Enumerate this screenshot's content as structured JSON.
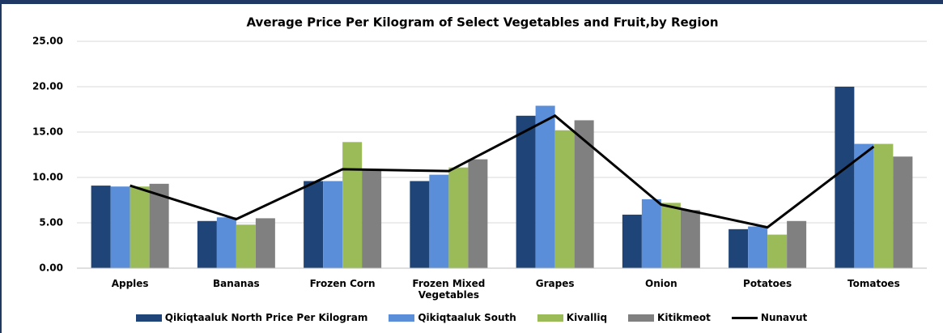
{
  "chart_data": {
    "type": "bar",
    "title": "Average Price Per Kilogram of Select Vegetables and Fruit,by Region",
    "categories": [
      "Apples",
      "Bananas",
      "Frozen Corn",
      "Frozen Mixed Vegetables",
      "Grapes",
      "Onion",
      "Potatoes",
      "Tomatoes"
    ],
    "series": [
      {
        "name": "Qikiqtaaluk North Price Per Kilogram",
        "color": "#1f4478",
        "values": [
          9.1,
          5.2,
          9.6,
          9.6,
          16.8,
          5.9,
          4.3,
          20.0
        ]
      },
      {
        "name": "Qikiqtaaluk South",
        "color": "#5b8ed8",
        "values": [
          9.0,
          5.6,
          9.6,
          10.3,
          17.9,
          7.6,
          4.6,
          13.7
        ]
      },
      {
        "name": "Kivalliq",
        "color": "#9bbb59",
        "values": [
          9.0,
          4.8,
          13.9,
          11.1,
          15.2,
          7.2,
          3.7,
          13.7
        ]
      },
      {
        "name": "Kitikmeot",
        "color": "#808080",
        "values": [
          9.3,
          5.5,
          10.9,
          12.0,
          16.3,
          6.4,
          5.2,
          12.3
        ]
      },
      {
        "name": "Nunavut",
        "color": "#000000",
        "type": "line",
        "values": [
          9.1,
          5.4,
          10.9,
          10.7,
          16.8,
          7.0,
          4.5,
          13.4
        ]
      }
    ],
    "ylim": [
      0,
      25
    ],
    "yticks": [
      {
        "value": 0,
        "label": "0.00"
      },
      {
        "value": 5,
        "label": "5.00"
      },
      {
        "value": 10,
        "label": "10.00"
      },
      {
        "value": 15,
        "label": "15.00"
      },
      {
        "value": 20,
        "label": "20.00"
      },
      {
        "value": 25,
        "label": "25.00"
      }
    ],
    "grid": true,
    "legend": "bottom"
  }
}
